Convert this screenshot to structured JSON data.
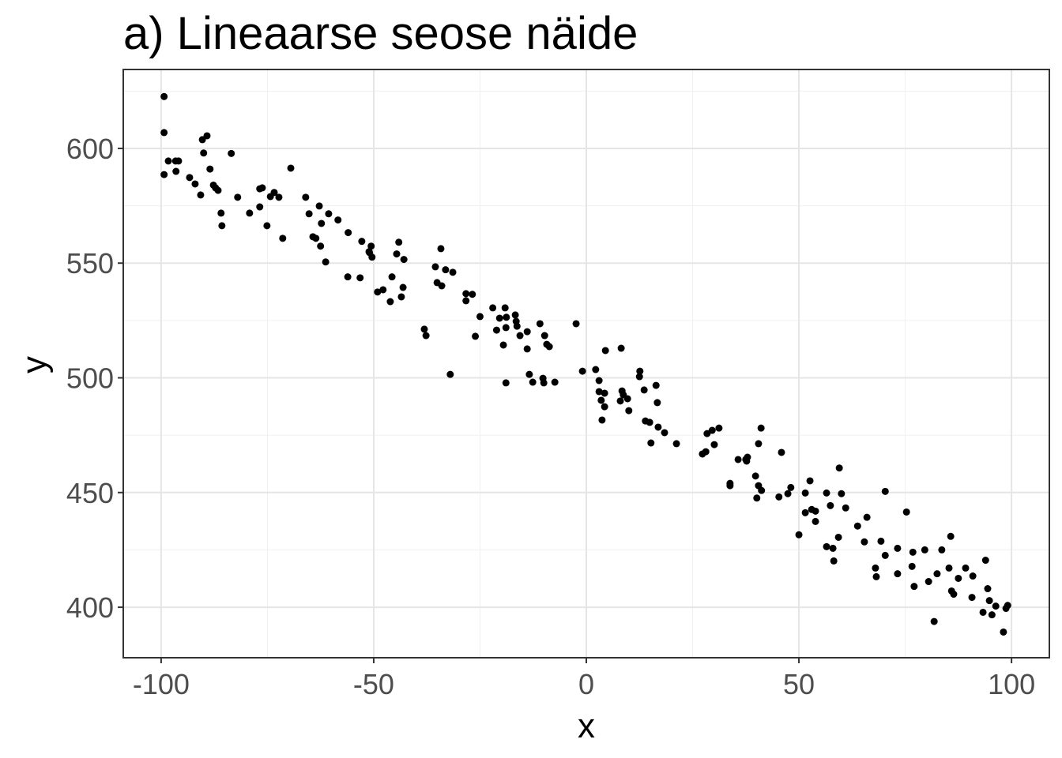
{
  "chart_data": {
    "type": "scatter",
    "title": "a) Lineaarse seose näide",
    "x_label": "x",
    "y_label": "y",
    "color": "#000000",
    "grid": true,
    "xlim": [
      -108.9,
      108.9
    ],
    "ylim": [
      378.0,
      634.4
    ],
    "xticks": [
      -100,
      -50,
      0,
      50,
      100
    ],
    "yticks": [
      400,
      450,
      500,
      550,
      600
    ],
    "minor_xticks": [
      -75,
      -25,
      25,
      75
    ],
    "minor_yticks": [
      425,
      475,
      525,
      575,
      625
    ],
    "x": [
      -99.3,
      -99.3,
      -99.3,
      -98.3,
      -96.6,
      -95.9,
      -96.5,
      -93.3,
      -92,
      -90.7,
      -90.3,
      -89.2,
      -90,
      -88.5,
      -87.7,
      -87.2,
      -86.6,
      -85.9,
      -85.7,
      -83.5,
      -82,
      -79.2,
      -76.8,
      -76.8,
      -76.2,
      -75.1,
      -74.3,
      -73.4,
      -72.3,
      -71.4,
      -69.5,
      -66,
      -65.2,
      -64.3,
      -63.6,
      -62.8,
      -62.5,
      -62.3,
      -61.3,
      -60.6,
      -58.4,
      -56,
      -56.1,
      -53.2,
      -52.8,
      -51.1,
      -50.6,
      -50.4,
      -51,
      -49.1,
      -47.8,
      -46.1,
      -45.7,
      -44.6,
      -44.1,
      -43.5,
      -43.1,
      -42.9,
      -38.1,
      -37.7,
      -35.5,
      -35.1,
      -34,
      -34.2,
      -33.1,
      -32,
      -31.4,
      -28.3,
      -28.3,
      -26.8,
      -26.1,
      -25,
      -22,
      -21.1,
      -20.4,
      -19.5,
      -19.1,
      -18.8,
      -18.9,
      -18.9,
      -16.7,
      -16.5,
      -16.3,
      -15.6,
      -13.9,
      -13.9,
      -13.4,
      -12.6,
      -10.9,
      -10.2,
      -9.8,
      -10,
      -9.3,
      -8.7,
      -7.4,
      -2.4,
      -0.9,
      2.2,
      3,
      3,
      3.5,
      3.7,
      4.3,
      4.5,
      4.3,
      8.2,
      8,
      8.4,
      8.7,
      9.7,
      10,
      12.5,
      12.6,
      13.6,
      13.9,
      14.9,
      15.2,
      16.4,
      16.7,
      16.9,
      18.4,
      21.2,
      27.3,
      28.1,
      28.4,
      29.6,
      30.1,
      31.2,
      33.8,
      33.8,
      35.7,
      37.5,
      37.9,
      37.7,
      39.8,
      40.1,
      40.5,
      40.5,
      41.1,
      41.2,
      45.3,
      45.9,
      47.4,
      48.1,
      50,
      51.5,
      51.5,
      52.6,
      53,
      53.9,
      53.9,
      56.5,
      56.5,
      57.4,
      58,
      58.2,
      59.3,
      59.5,
      60,
      61,
      63.8,
      65.4,
      66,
      68,
      68.2,
      69.3,
      70.3,
      70.3,
      73.2,
      73.2,
      75.3,
      76.6,
      76.8,
      77.1,
      79.6,
      80.5,
      81.8,
      82.5,
      83.6,
      85.3,
      85.7,
      85.9,
      86.4,
      87.5,
      89.2,
      90.9,
      90.7,
      93.3,
      93.9,
      94.4,
      94.8,
      95.4,
      96.3,
      98.1,
      98.7,
      99.1
    ],
    "values": [
      622.6,
      606.9,
      588.6,
      594.5,
      594.5,
      594.5,
      590,
      587.3,
      584.5,
      579.7,
      603.8,
      605.5,
      598,
      591,
      584,
      582.8,
      581.7,
      571.8,
      566.3,
      597.8,
      578.7,
      571.8,
      574.5,
      582.4,
      582.8,
      566.3,
      579,
      580.8,
      578.7,
      560.8,
      591.4,
      578.7,
      571.5,
      561.5,
      560.8,
      574.9,
      557.4,
      567.3,
      550.5,
      571.5,
      568.8,
      563.3,
      544,
      543.6,
      559.5,
      555,
      557.4,
      552.6,
      554.6,
      537.4,
      538.4,
      533.2,
      544,
      554,
      559.1,
      535.3,
      539.4,
      551.6,
      521.2,
      518.4,
      548.4,
      541.5,
      540.1,
      556.3,
      547.1,
      501.5,
      546,
      536.7,
      533.6,
      536.4,
      518.1,
      526.7,
      530.5,
      520.8,
      526,
      514.3,
      530.5,
      526.4,
      497.8,
      521.9,
      527.4,
      524.6,
      522.5,
      518.4,
      512.6,
      520.1,
      501.5,
      498.1,
      523.6,
      499.8,
      518.4,
      497.8,
      514.6,
      513.6,
      498.1,
      523.6,
      502.9,
      503.6,
      498.8,
      494,
      490.2,
      481.6,
      487.4,
      511.9,
      493.3,
      512.9,
      489.9,
      494.3,
      492.6,
      490.9,
      485.7,
      500.5,
      502.9,
      494.7,
      481.2,
      480.6,
      471.6,
      496.7,
      489.2,
      478.5,
      476.1,
      471.3,
      466.8,
      467.8,
      475.7,
      477.1,
      470.9,
      478.1,
      454,
      453,
      464.4,
      464.4,
      465.4,
      463.7,
      457.2,
      447.6,
      453,
      471.3,
      478.1,
      450.9,
      448.1,
      467.5,
      449.5,
      452.2,
      431.6,
      441.2,
      449.8,
      455.1,
      442.6,
      437.4,
      441.9,
      449.8,
      426.4,
      444.3,
      425.7,
      420.2,
      430.5,
      460.7,
      449.5,
      443.3,
      435.4,
      428.5,
      439.2,
      417.1,
      413.3,
      428.8,
      422.6,
      450.5,
      414.6,
      425.7,
      441.5,
      417.8,
      424,
      409.1,
      425,
      411.2,
      393.8,
      414.6,
      425,
      417.1,
      430.9,
      407.1,
      405.7,
      412.6,
      417.1,
      413.6,
      404.3,
      397.8,
      420.5,
      408.1,
      402.9,
      396.7,
      400.5,
      389.2,
      399.5,
      400.8
    ]
  }
}
